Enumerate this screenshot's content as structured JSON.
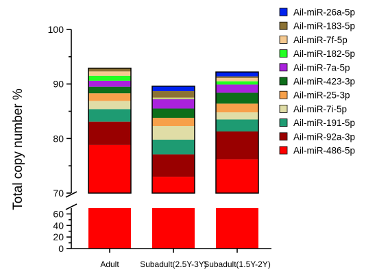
{
  "chart_data": {
    "type": "bar",
    "stacked": true,
    "title": "",
    "xlabel": "",
    "ylabel": "Total copy number %",
    "axis_break": {
      "lower_range": [
        0,
        70
      ],
      "upper_range": [
        70,
        100
      ]
    },
    "ylim": [
      0,
      100
    ],
    "y_ticks_upper": [
      70,
      80,
      90,
      100
    ],
    "y_ticks_lower": [
      0,
      20,
      40,
      60
    ],
    "legend_position": "right",
    "categories": [
      "Adult",
      "Subadult(2.5Y-3Y)",
      "Subadult(1.5Y-2Y)"
    ],
    "series": [
      {
        "name": "Ail-miR-486-5p",
        "color": "#ff0000",
        "values": [
          78.8,
          73.0,
          76.2
        ]
      },
      {
        "name": "Ail-miR-92a-3p",
        "color": "#990000",
        "values": [
          4.3,
          4.1,
          5.1
        ]
      },
      {
        "name": "Ail-miR-191-5p",
        "color": "#1e9b72",
        "values": [
          2.3,
          2.7,
          2.2
        ]
      },
      {
        "name": "Ail-miR-7i-5p",
        "color": "#e0dda6",
        "values": [
          1.5,
          2.5,
          1.3
        ]
      },
      {
        "name": "Ail-miR-25-3p",
        "color": "#f7a04a",
        "values": [
          1.4,
          1.5,
          1.6
        ]
      },
      {
        "name": "Ail-miR-423-3p",
        "color": "#0d6e1a",
        "values": [
          1.2,
          1.7,
          2.0
        ]
      },
      {
        "name": "Ail-miR-7a-5p",
        "color": "#aa22dd",
        "values": [
          1.1,
          1.7,
          1.5
        ]
      },
      {
        "name": "Ail-miR-182-5p",
        "color": "#22ff22",
        "values": [
          0.9,
          0.1,
          0.6
        ]
      },
      {
        "name": "Ail-miR-7f-5p",
        "color": "#f5c990",
        "values": [
          0.8,
          0.2,
          0.6
        ]
      },
      {
        "name": "Ail-miR-183-5p",
        "color": "#8b7234",
        "values": [
          0.6,
          1.2,
          0.3
        ]
      },
      {
        "name": "Ail-miR-26a-5p",
        "color": "#0022ee",
        "values": [
          0.0,
          0.9,
          0.8
        ]
      }
    ]
  }
}
